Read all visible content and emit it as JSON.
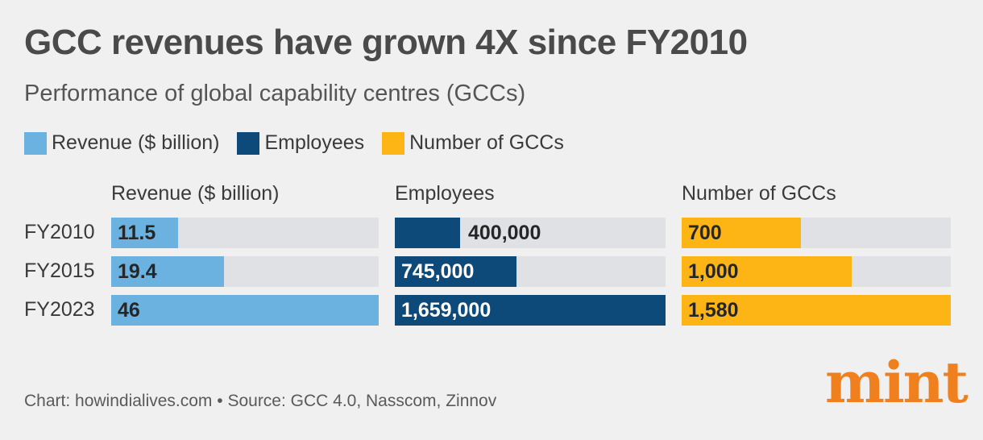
{
  "header": {
    "title": "GCC revenues have grown 4X since FY2010",
    "subtitle": "Performance of global capability centres (GCCs)"
  },
  "legend": [
    {
      "label": "Revenue ($ billion)",
      "color": "#6cb2e0"
    },
    {
      "label": "Employees",
      "color": "#0d4a7a"
    },
    {
      "label": "Number of GCCs",
      "color": "#fdb515"
    }
  ],
  "chart_data": {
    "type": "bar",
    "categories": [
      "FY2010",
      "FY2015",
      "FY2023"
    ],
    "series": [
      {
        "name": "Revenue ($ billion)",
        "values": [
          11.5,
          19.4,
          46
        ],
        "labels": [
          "11.5",
          "19.4",
          "46"
        ],
        "color": "#6cb2e0"
      },
      {
        "name": "Employees",
        "values": [
          400000,
          745000,
          1659000
        ],
        "labels": [
          "400,000",
          "745,000",
          "1,659,000"
        ],
        "color": "#0d4a7a"
      },
      {
        "name": "Number of GCCs",
        "values": [
          700,
          1000,
          1580
        ],
        "labels": [
          "700",
          "1,000",
          "1,580"
        ],
        "color": "#fdb515"
      }
    ],
    "track_color": "#dfe1e5"
  },
  "footer": {
    "source": "Chart: howindialives.com • Source: GCC 4.0, Nasscom, Zinnov"
  },
  "logo": {
    "text": "mint",
    "color": "#f07f1e"
  }
}
